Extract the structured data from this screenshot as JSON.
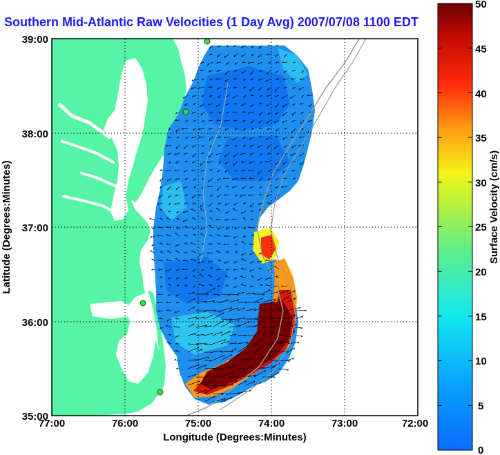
{
  "title": "Southern Mid-Atlantic Raw Velocities (1 Day Avg) 2007/07/08 1100 EDT",
  "map": {
    "xlabel": "Longitude (Degrees:Minutes)",
    "ylabel": "Latitude (Degrees:Minutes)",
    "x_ticks": [
      "77:00",
      "76:00",
      "75:00",
      "74:00",
      "73:00",
      "72:00"
    ],
    "y_ticks": [
      "39:00",
      "38:00",
      "37:00",
      "36:00",
      "35:00"
    ],
    "grid": "dotted",
    "land_color": "#55f5a5"
  },
  "colorbar": {
    "label": "Surface Velocity (cm/s)",
    "ticks": [
      "50",
      "45",
      "40",
      "35",
      "30",
      "25",
      "20",
      "15",
      "10",
      "5",
      "0"
    ],
    "range": [
      0,
      50
    ],
    "colormap": "jet"
  },
  "stations": [
    "station-1",
    "station-2",
    "station-3",
    "station-4"
  ]
}
